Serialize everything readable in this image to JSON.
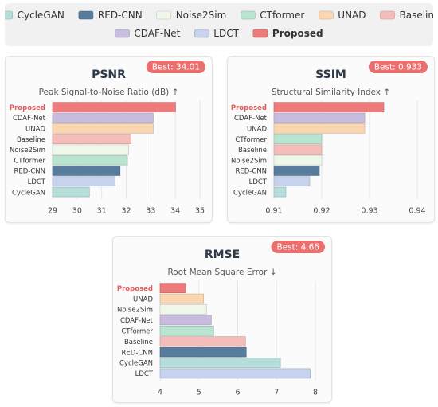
{
  "legend": [
    {
      "name": "CycleGAN",
      "color": "#b5ddd9"
    },
    {
      "name": "RED-CNN",
      "color": "#587c9c"
    },
    {
      "name": "Noise2Sim",
      "color": "#eef7ea"
    },
    {
      "name": "CTformer",
      "color": "#b9e4cf"
    },
    {
      "name": "UNAD",
      "color": "#fad7b1"
    },
    {
      "name": "Baseline",
      "color": "#f4bdb9"
    },
    {
      "name": "CDAF-Net",
      "color": "#c8bddf"
    },
    {
      "name": "LDCT",
      "color": "#c7d2ee"
    },
    {
      "name": "Proposed",
      "color": "#ee7b7b"
    }
  ],
  "chart_data": [
    {
      "type": "bar",
      "orientation": "horizontal",
      "title": "PSNR",
      "subtitle": "Peak Signal-to-Noise Ratio (dB) ↑",
      "badge": "Best: 34.01",
      "categories": [
        "Proposed",
        "CDAF-Net",
        "UNAD",
        "Baseline",
        "Noise2Sim",
        "CTformer",
        "RED-CNN",
        "LDCT",
        "CycleGAN"
      ],
      "values": [
        34.01,
        33.1,
        33.1,
        32.2,
        32.1,
        32.05,
        31.75,
        31.55,
        30.5
      ],
      "xlim": [
        29,
        35
      ],
      "ticks": [
        29,
        30,
        31,
        32,
        33,
        34,
        35
      ],
      "grid": true
    },
    {
      "type": "bar",
      "orientation": "horizontal",
      "title": "SSIM",
      "subtitle": "Structural Similarity Index ↑",
      "badge": "Best: 0.933",
      "categories": [
        "Proposed",
        "CDAF-Net",
        "UNAD",
        "CTformer",
        "Baseline",
        "Noise2Sim",
        "RED-CNN",
        "LDCT",
        "CycleGAN"
      ],
      "values": [
        0.933,
        0.929,
        0.929,
        0.92,
        0.92,
        0.92,
        0.9195,
        0.9175,
        0.9125
      ],
      "xlim": [
        0.91,
        0.94
      ],
      "ticks": [
        "0.91",
        "0.92",
        "0.93",
        "0.94"
      ],
      "grid": true
    },
    {
      "type": "bar",
      "orientation": "horizontal",
      "title": "RMSE",
      "subtitle": "Root Mean Square Error ↓",
      "badge": "Best: 4.66",
      "categories": [
        "Proposed",
        "UNAD",
        "Noise2Sim",
        "CDAF-Net",
        "CTformer",
        "Baseline",
        "RED-CNN",
        "CycleGAN",
        "LDCT"
      ],
      "values": [
        4.66,
        5.12,
        5.2,
        5.32,
        5.38,
        6.2,
        6.22,
        7.1,
        7.87
      ],
      "xlim": [
        4,
        8
      ],
      "ticks": [
        4,
        5,
        6,
        7,
        8
      ],
      "grid": true
    }
  ]
}
